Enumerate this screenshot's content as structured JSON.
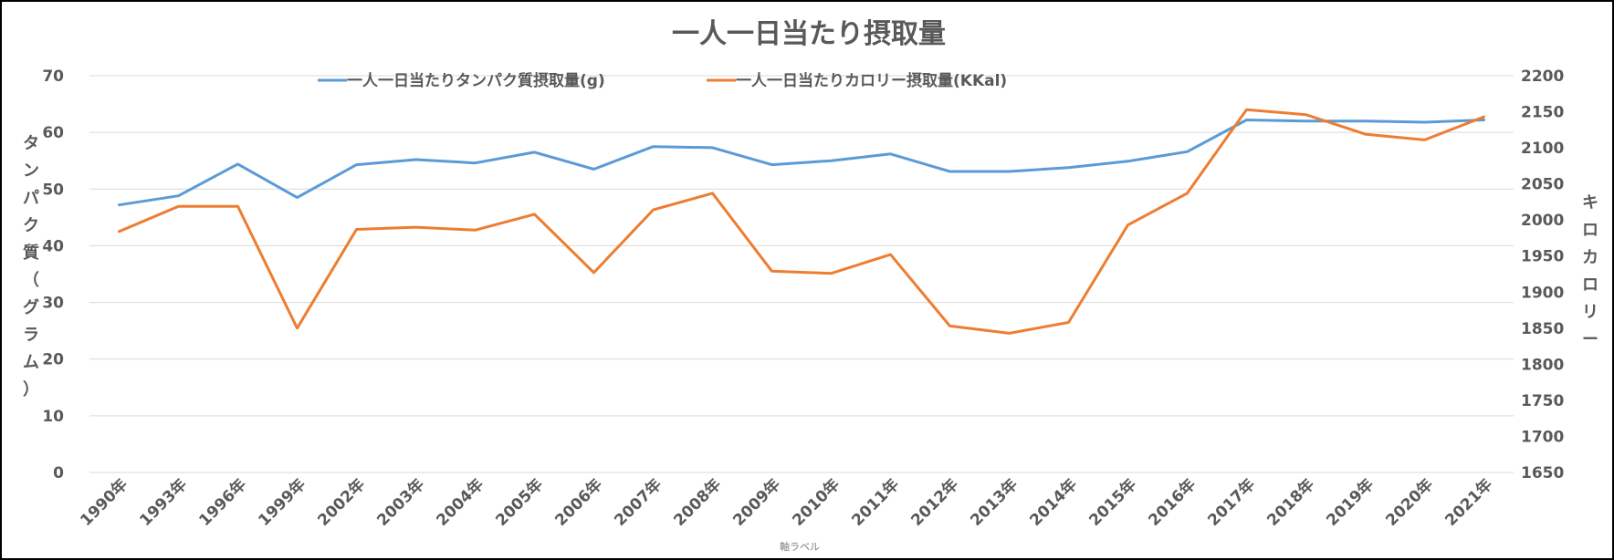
{
  "chart_data": {
    "type": "line",
    "title": "一人一日当たり摂取量",
    "xlabel": "軸ラベル",
    "ylabel": "タンパク質（グラム）",
    "y2label": "キロカロリー",
    "categories": [
      "1990年",
      "1993年",
      "1996年",
      "1999年",
      "2002年",
      "2003年",
      "2004年",
      "2005年",
      "2006年",
      "2007年",
      "2008年",
      "2009年",
      "2010年",
      "2011年",
      "2012年",
      "2013年",
      "2014年",
      "2015年",
      "2016年",
      "2017年",
      "2018年",
      "2019年",
      "2020年",
      "2021年"
    ],
    "ylim": [
      0,
      70
    ],
    "yticks": [
      "0",
      "10",
      "20",
      "30",
      "40",
      "50",
      "60",
      "70"
    ],
    "y2lim": [
      1650,
      2200
    ],
    "y2ticks": [
      "1650",
      "1700",
      "1750",
      "1800",
      "1850",
      "1900",
      "1950",
      "2000",
      "2050",
      "2100",
      "2150",
      "2200"
    ],
    "legend_position": "top",
    "grid": true,
    "series": [
      {
        "name": "一人一日当たりタンパク質摂取量(g)",
        "axis": "left",
        "color": "#5b9bd5",
        "values": [
          47.2,
          48.8,
          54.4,
          48.5,
          54.3,
          55.2,
          54.6,
          56.5,
          53.5,
          57.5,
          57.3,
          54.3,
          55.0,
          56.2,
          53.1,
          53.1,
          53.8,
          54.9,
          56.6,
          62.2,
          62.0,
          62.0,
          61.8,
          62.2
        ]
      },
      {
        "name": "一人一日当たりカロリー摂取量(KKal)",
        "axis": "right",
        "color": "#ed7d31",
        "values": [
          1984,
          2019,
          2019,
          1850,
          1987,
          1990,
          1986,
          2008,
          1927,
          2014,
          2037,
          1929,
          1926,
          1952,
          1853,
          1843,
          1858,
          1993,
          2037,
          2153,
          2146,
          2119,
          2111,
          2143
        ]
      }
    ]
  }
}
